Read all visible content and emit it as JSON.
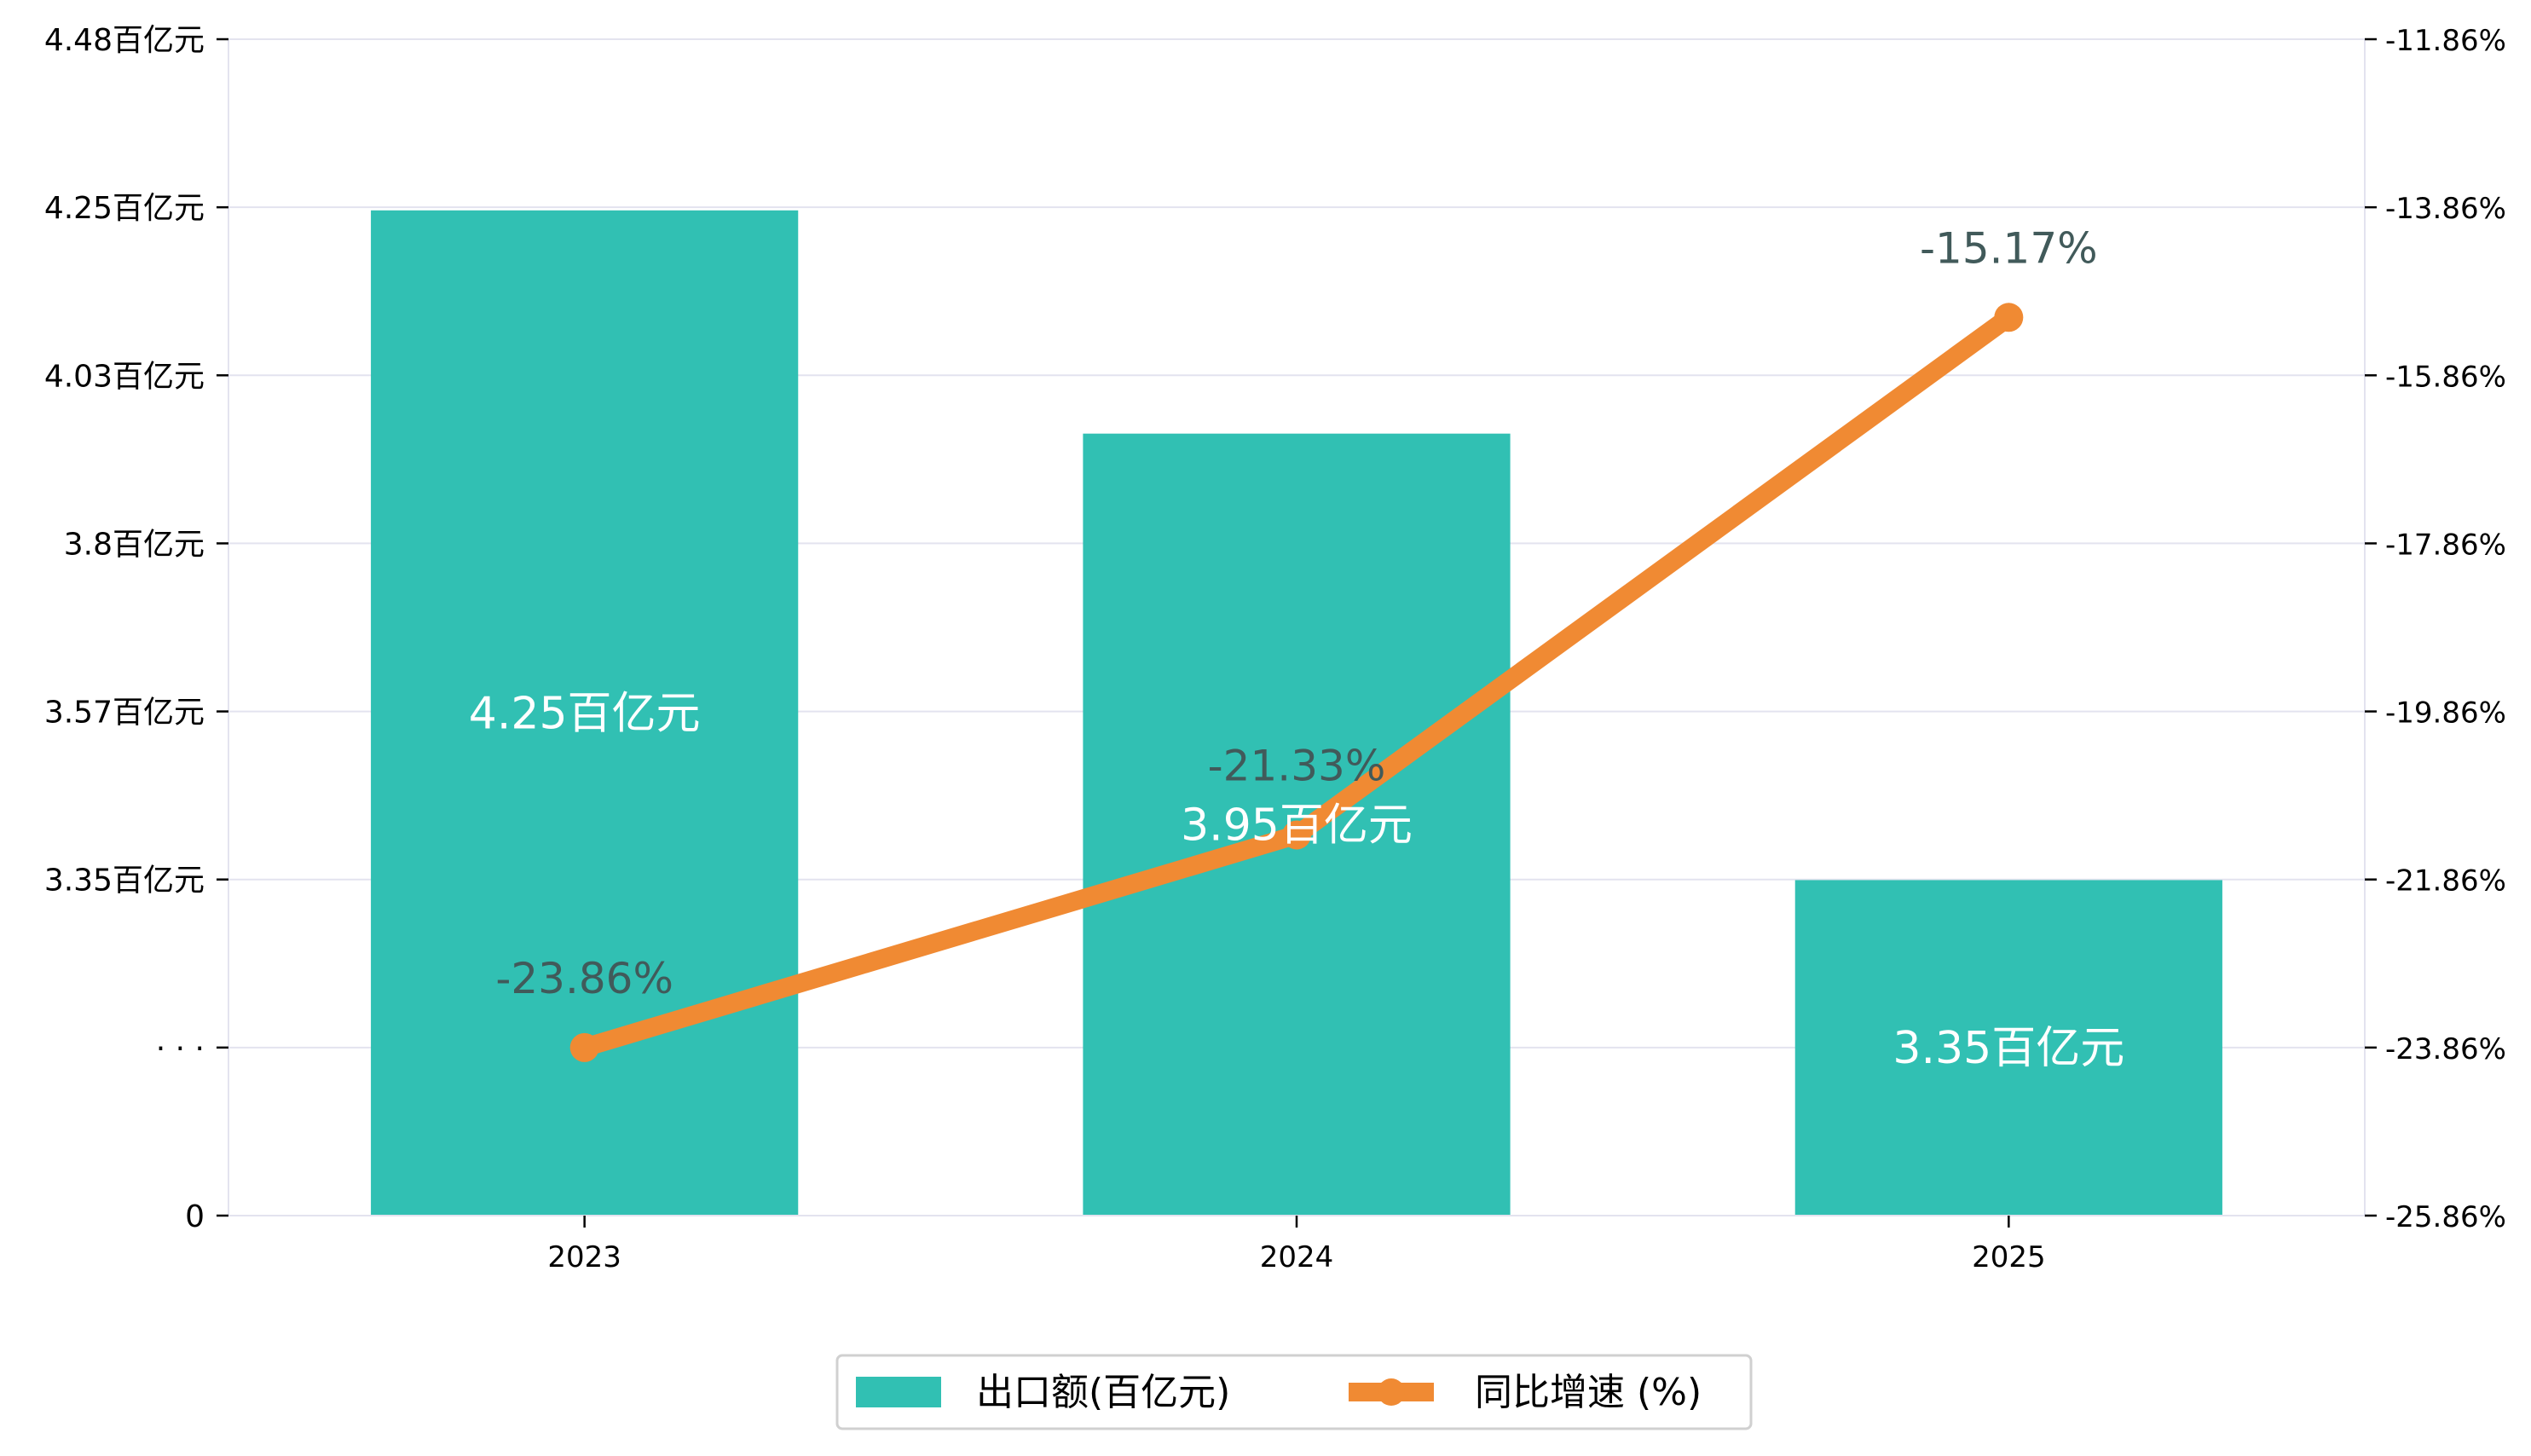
{
  "chart_data": {
    "type": "bar",
    "categories": [
      "2023",
      "2024",
      "2025"
    ],
    "series": [
      {
        "name": "出口额(百亿元)",
        "type": "bar",
        "axis": "left",
        "values": [
          4.25,
          3.95,
          3.35
        ],
        "data_labels": [
          "4.25百亿元",
          "3.95百亿元",
          "3.35百亿元"
        ],
        "color": "#31c0b3"
      },
      {
        "name": "同比增速 (%)",
        "type": "line",
        "axis": "right",
        "values": [
          -23.86,
          -21.33,
          -15.17
        ],
        "data_labels": [
          "-23.86%",
          "-21.33%",
          "-15.17%"
        ],
        "color": "#f08a33"
      }
    ],
    "left_axis": {
      "tick_labels": [
        "0",
        "· · ·",
        "3.35百亿元",
        "3.57百亿元",
        "3.8百亿元",
        "4.03百亿元",
        "4.25百亿元",
        "4.48百亿元"
      ],
      "note": "broken axis: 0 at bottom, then 3.125 to 4.48"
    },
    "right_axis": {
      "ylim": [
        -25.86,
        -11.86
      ],
      "tick_labels": [
        "-25.86%",
        "-23.86%",
        "-21.86%",
        "-19.86%",
        "-17.86%",
        "-15.86%",
        "-13.86%",
        "-11.86%"
      ]
    },
    "grid": true,
    "legend_position": "bottom-center",
    "colors": {
      "bar": "#31c0b3",
      "line": "#f08a33",
      "grid": "#e3e3ef",
      "axis_text": "#000000",
      "line_label": "#415a5a",
      "bar_label": "#ffffff"
    }
  }
}
